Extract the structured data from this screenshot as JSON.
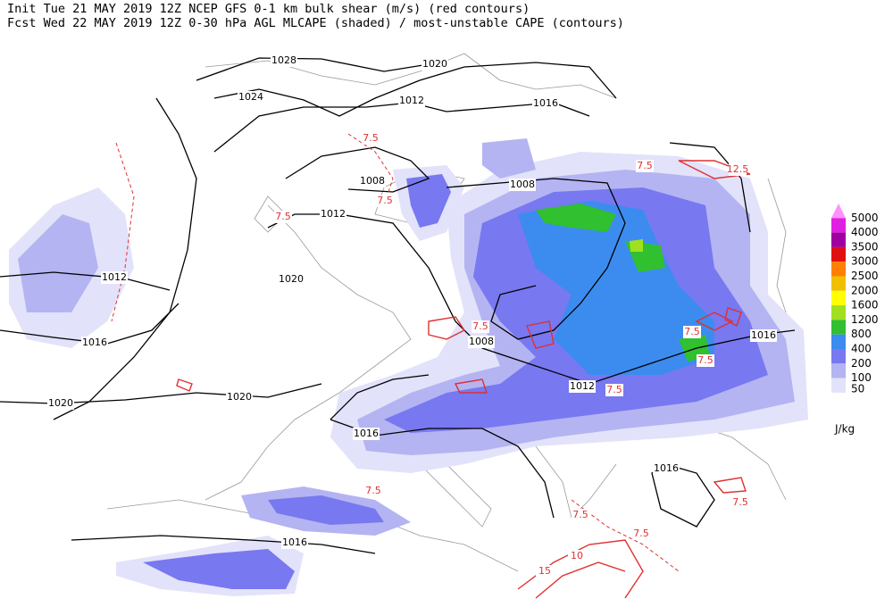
{
  "header": {
    "line1": "Init  Tue 21 MAY 2019 12Z  NCEP GFS 0-1 km bulk shear (m/s) (red contours)",
    "line2": "Fcst Wed 22 MAY 2019 12Z  0-30 hPa AGL MLCAPE (shaded) / most-unstable CAPE (contours)"
  },
  "legend": {
    "unit": "J/kg",
    "levels": [
      {
        "label": "5000",
        "color": "#ff90ff"
      },
      {
        "label": "4000",
        "color": "#e020e0"
      },
      {
        "label": "3500",
        "color": "#a000a0"
      },
      {
        "label": "3000",
        "color": "#e01010"
      },
      {
        "label": "2500",
        "color": "#ff8000"
      },
      {
        "label": "2000",
        "color": "#f0c000"
      },
      {
        "label": "1600",
        "color": "#ffff00"
      },
      {
        "label": "1200",
        "color": "#a0e020"
      },
      {
        "label": "800",
        "color": "#30c030"
      },
      {
        "label": "400",
        "color": "#3c8cf0"
      },
      {
        "label": "200",
        "color": "#7878f0"
      },
      {
        "label": "100",
        "color": "#b4b4f2"
      },
      {
        "label": "50",
        "color": "#e2e2fa"
      }
    ]
  },
  "isobar_labels": [
    "1028",
    "1020",
    "1024",
    "1012",
    "1016",
    "1008",
    "1008",
    "1012",
    "1012",
    "1020",
    "1016",
    "1008",
    "1016",
    "1012",
    "1020",
    "1020",
    "1016",
    "1016",
    "1016"
  ],
  "shear_labels": [
    "7.5",
    "7.5",
    "7.5",
    "7.5",
    "12.5",
    "7.5",
    "7.5",
    "7.5",
    "7.5",
    "7.5",
    "7.5",
    "7.5",
    "7.5",
    "10",
    "15"
  ]
}
